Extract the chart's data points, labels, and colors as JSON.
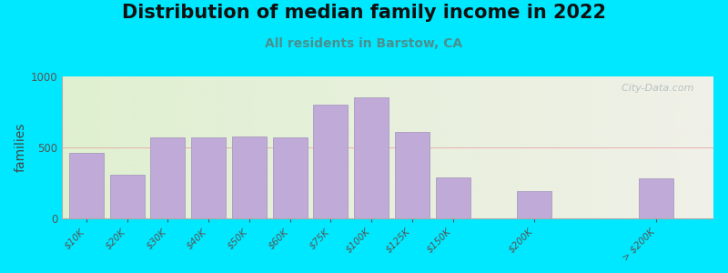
{
  "title": "Distribution of median family income in 2022",
  "subtitle": "All residents in Barstow, CA",
  "ylabel": "families",
  "categories": [
    "$10K",
    "$20K",
    "$30K",
    "$40K",
    "$50K",
    "$60K",
    "$75K",
    "$100K",
    "$125K",
    "$150K",
    "$200K",
    "> $200K"
  ],
  "values": [
    460,
    310,
    570,
    570,
    575,
    570,
    800,
    850,
    610,
    290,
    195,
    285
  ],
  "bar_color": "#c0aad8",
  "bar_edge_color": "#a090bb",
  "ylim": [
    0,
    1000
  ],
  "yticks": [
    0,
    500,
    1000
  ],
  "background_color_left": "#dff0d0",
  "background_color_right": "#f0f0e8",
  "figure_bg": "#00e8ff",
  "title_fontsize": 15,
  "subtitle_fontsize": 10,
  "ylabel_fontsize": 10,
  "watermark": "  City-Data.com",
  "bar_positions": [
    0,
    1,
    2,
    3,
    4,
    5,
    6,
    7,
    8,
    9,
    11,
    14
  ],
  "xlim_left": -0.6,
  "xlim_right": 15.4
}
